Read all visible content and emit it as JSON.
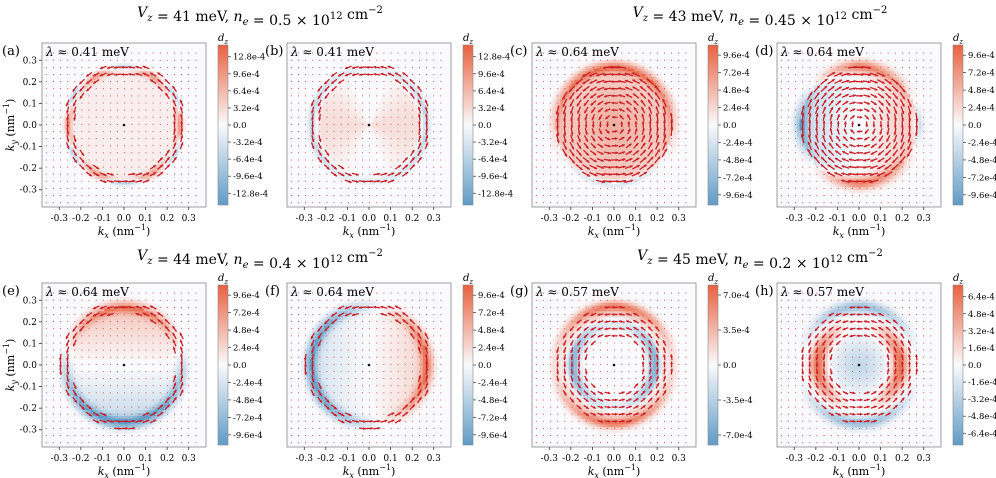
{
  "figure": {
    "row_titles": [
      {
        "text": "V_z = 41 meV, n_e = 0.5 × 10^12 cm^−2"
      },
      {
        "text": "V_z = 43 meV, n_e = 0.45 × 10^12 cm^−2"
      },
      {
        "text": "V_z = 44 meV, n_e = 0.4 × 10^12 cm^−2"
      },
      {
        "text": "V_z = 45 meV, n_e = 0.2 × 10^12 cm^−2"
      }
    ]
  },
  "chart_data": [
    {
      "panel": "(a)",
      "type": "heatmap",
      "lambda": "λ ≈ 0.41 meV",
      "xlabel": "k_x (nm^−1)",
      "ylabel": "k_y (nm^−1)",
      "colorbar_label": "d_z",
      "xlim": [
        -0.38,
        0.38
      ],
      "ylim": [
        -0.38,
        0.38
      ],
      "xticks": [
        "-0.3",
        "-0.2",
        "-0.1",
        "0.0",
        "0.1",
        "0.2",
        "0.3"
      ],
      "yticks": [
        "0.3",
        "0.2",
        "0.1",
        "0.0",
        "-0.1",
        "-0.2",
        "-0.3"
      ],
      "cb_range": [
        -0.0015,
        0.0015
      ],
      "cb_ticks": [
        {
          "v": 0.00128,
          "t": "12.8e-4"
        },
        {
          "v": 0.00096,
          "t": "9.6e-4"
        },
        {
          "v": 0.00064,
          "t": "6.4e-4"
        },
        {
          "v": 0.00032,
          "t": "3.2e-4"
        },
        {
          "v": 0,
          "t": "0.0"
        },
        {
          "v": -0.00032,
          "t": "-3.2e-4"
        },
        {
          "v": -0.00064,
          "t": "-6.4e-4"
        },
        {
          "v": -0.00096,
          "t": "-9.6e-4"
        },
        {
          "v": -0.00128,
          "t": "-12.8e-4"
        }
      ],
      "fermi_radius": 0.26,
      "pattern": "ring",
      "vortex": "none"
    },
    {
      "panel": "(b)",
      "type": "heatmap",
      "lambda": "λ ≈ 0.41 meV",
      "xlabel": "k_x (nm^−1)",
      "ylabel": "",
      "colorbar_label": "d_z",
      "xlim": [
        -0.38,
        0.38
      ],
      "ylim": [
        -0.38,
        0.38
      ],
      "xticks": [
        "-0.3",
        "-0.2",
        "-0.1",
        "0.0",
        "0.1",
        "0.2",
        "0.3"
      ],
      "yticks": [],
      "cb_range": [
        -0.0015,
        0.0015
      ],
      "cb_ticks": [
        {
          "v": 0.00128,
          "t": "12.8e-4"
        },
        {
          "v": 0.00096,
          "t": "9.6e-4"
        },
        {
          "v": 0.00064,
          "t": "6.4e-4"
        },
        {
          "v": 0.00032,
          "t": "3.2e-4"
        },
        {
          "v": 0,
          "t": "0.0"
        },
        {
          "v": -0.00032,
          "t": "-3.2e-4"
        },
        {
          "v": -0.00064,
          "t": "-6.4e-4"
        },
        {
          "v": -0.00096,
          "t": "-9.6e-4"
        },
        {
          "v": -0.00128,
          "t": "-12.8e-4"
        }
      ],
      "fermi_radius": 0.26,
      "pattern": "ring-weak",
      "vortex": "none"
    },
    {
      "panel": "(c)",
      "type": "heatmap",
      "lambda": "λ ≈ 0.64 meV",
      "xlabel": "k_x (nm^−1)",
      "ylabel": "",
      "colorbar_label": "d_z",
      "xlim": [
        -0.38,
        0.38
      ],
      "ylim": [
        -0.38,
        0.38
      ],
      "xticks": [
        "-0.3",
        "-0.2",
        "-0.1",
        "0.0",
        "0.1",
        "0.2",
        "0.3"
      ],
      "yticks": [],
      "cb_range": [
        -0.0011,
        0.0011
      ],
      "cb_ticks": [
        {
          "v": 0.00096,
          "t": "9.6e-4"
        },
        {
          "v": 0.00072,
          "t": "7.2e-4"
        },
        {
          "v": 0.00048,
          "t": "4.8e-4"
        },
        {
          "v": 0.00024,
          "t": "2.4e-4"
        },
        {
          "v": 0,
          "t": "0.0"
        },
        {
          "v": -0.00024,
          "t": "-2.4e-4"
        },
        {
          "v": -0.00048,
          "t": "-4.8e-4"
        },
        {
          "v": -0.00072,
          "t": "-7.2e-4"
        },
        {
          "v": -0.00096,
          "t": "-9.6e-4"
        }
      ],
      "fermi_radius": 0.27,
      "pattern": "filled",
      "vortex": "ccw"
    },
    {
      "panel": "(d)",
      "type": "heatmap",
      "lambda": "λ ≈ 0.64 meV",
      "xlabel": "k_x (nm^−1)",
      "ylabel": "",
      "colorbar_label": "d_z",
      "xlim": [
        -0.38,
        0.38
      ],
      "ylim": [
        -0.38,
        0.38
      ],
      "xticks": [
        "-0.3",
        "-0.2",
        "-0.1",
        "0.0",
        "0.1",
        "0.2",
        "0.3"
      ],
      "yticks": [],
      "cb_range": [
        -0.0011,
        0.0011
      ],
      "cb_ticks": [
        {
          "v": 0.00096,
          "t": "9.6e-4"
        },
        {
          "v": 0.00072,
          "t": "7.2e-4"
        },
        {
          "v": 0.00048,
          "t": "4.8e-4"
        },
        {
          "v": 0.00024,
          "t": "2.4e-4"
        },
        {
          "v": 0,
          "t": "0.0"
        },
        {
          "v": -0.00024,
          "t": "-2.4e-4"
        },
        {
          "v": -0.00048,
          "t": "-4.8e-4"
        },
        {
          "v": -0.00072,
          "t": "-7.2e-4"
        },
        {
          "v": -0.00096,
          "t": "-9.6e-4"
        }
      ],
      "fermi_radius": 0.27,
      "pattern": "split",
      "vortex": "cw"
    },
    {
      "panel": "(e)",
      "type": "heatmap",
      "lambda": "λ ≈ 0.64 meV",
      "xlabel": "k_x (nm^−1)",
      "ylabel": "k_y (nm^−1)",
      "colorbar_label": "d_z",
      "xlim": [
        -0.38,
        0.38
      ],
      "ylim": [
        -0.38,
        0.38
      ],
      "xticks": [
        "-0.3",
        "-0.2",
        "-0.1",
        "0.0",
        "0.1",
        "0.2",
        "0.3"
      ],
      "yticks": [
        "0.3",
        "0.2",
        "0.1",
        "0.0",
        "-0.1",
        "-0.2",
        "-0.3"
      ],
      "cb_range": [
        -0.0011,
        0.0011
      ],
      "cb_ticks": [
        {
          "v": 0.00096,
          "t": "9.6e-4"
        },
        {
          "v": 0.00072,
          "t": "7.2e-4"
        },
        {
          "v": 0.00048,
          "t": "4.8e-4"
        },
        {
          "v": 0.00024,
          "t": "2.4e-4"
        },
        {
          "v": 0,
          "t": "0.0"
        },
        {
          "v": -0.00024,
          "t": "-2.4e-4"
        },
        {
          "v": -0.00048,
          "t": "-4.8e-4"
        },
        {
          "v": -0.00072,
          "t": "-7.2e-4"
        },
        {
          "v": -0.00096,
          "t": "-9.6e-4"
        }
      ],
      "fermi_radius": 0.27,
      "pattern": "topbottom",
      "vortex": "none"
    },
    {
      "panel": "(f)",
      "type": "heatmap",
      "lambda": "λ ≈ 0.64 meV",
      "xlabel": "k_x (nm^−1)",
      "ylabel": "",
      "colorbar_label": "d_z",
      "xlim": [
        -0.38,
        0.38
      ],
      "ylim": [
        -0.38,
        0.38
      ],
      "xticks": [
        "-0.3",
        "-0.2",
        "-0.1",
        "0.0",
        "0.1",
        "0.2",
        "0.3"
      ],
      "yticks": [],
      "cb_range": [
        -0.0011,
        0.0011
      ],
      "cb_ticks": [
        {
          "v": 0.00096,
          "t": "9.6e-4"
        },
        {
          "v": 0.00072,
          "t": "7.2e-4"
        },
        {
          "v": 0.00048,
          "t": "4.8e-4"
        },
        {
          "v": 0.00024,
          "t": "2.4e-4"
        },
        {
          "v": 0,
          "t": "0.0"
        },
        {
          "v": -0.00024,
          "t": "-2.4e-4"
        },
        {
          "v": -0.00048,
          "t": "-4.8e-4"
        },
        {
          "v": -0.00072,
          "t": "-7.2e-4"
        },
        {
          "v": -0.00096,
          "t": "-9.6e-4"
        }
      ],
      "fermi_radius": 0.27,
      "pattern": "leftright",
      "vortex": "none"
    },
    {
      "panel": "(g)",
      "type": "heatmap",
      "lambda": "λ ≈ 0.57 meV",
      "xlabel": "k_x (nm^−1)",
      "ylabel": "",
      "colorbar_label": "d_z",
      "xlim": [
        -0.38,
        0.38
      ],
      "ylim": [
        -0.38,
        0.38
      ],
      "xticks": [
        "-0.3",
        "-0.2",
        "-0.1",
        "0.0",
        "0.1",
        "0.2",
        "0.3"
      ],
      "yticks": [],
      "cb_range": [
        -0.0008,
        0.0008
      ],
      "cb_ticks": [
        {
          "v": 0.0007,
          "t": "7.0e-4"
        },
        {
          "v": 0.00035,
          "t": "3.5e-4"
        },
        {
          "v": 0,
          "t": "0.0"
        },
        {
          "v": -0.00035,
          "t": "-3.5e-4"
        },
        {
          "v": -0.0007,
          "t": "-7.0e-4"
        }
      ],
      "fermi_radius": 0.27,
      "pattern": "annulus",
      "vortex": "ring"
    },
    {
      "panel": "(h)",
      "type": "heatmap",
      "lambda": "λ ≈ 0.57 meV",
      "xlabel": "k_x (nm^−1)",
      "ylabel": "",
      "colorbar_label": "d_z",
      "xlim": [
        -0.38,
        0.38
      ],
      "ylim": [
        -0.38,
        0.38
      ],
      "xticks": [
        "-0.3",
        "-0.2",
        "-0.1",
        "0.0",
        "0.1",
        "0.2",
        "0.3"
      ],
      "yticks": [],
      "cb_range": [
        -0.00075,
        0.00075
      ],
      "cb_ticks": [
        {
          "v": 0.00064,
          "t": "6.4e-4"
        },
        {
          "v": 0.00048,
          "t": "4.8e-4"
        },
        {
          "v": 0.00032,
          "t": "3.2e-4"
        },
        {
          "v": 0.00016,
          "t": "1.6e-4"
        },
        {
          "v": 0,
          "t": "0.0"
        },
        {
          "v": -0.00016,
          "t": "-1.6e-4"
        },
        {
          "v": -0.00032,
          "t": "-3.2e-4"
        },
        {
          "v": -0.00048,
          "t": "-4.8e-4"
        },
        {
          "v": -0.00064,
          "t": "-6.4e-4"
        }
      ],
      "fermi_radius": 0.27,
      "pattern": "annulus-side",
      "vortex": "ring"
    }
  ],
  "colors": {
    "positive": "#e8613f",
    "negative": "#5f9bc6",
    "arrow": "#c81e28",
    "dot": "#d43a4a",
    "frame": "#888888"
  }
}
